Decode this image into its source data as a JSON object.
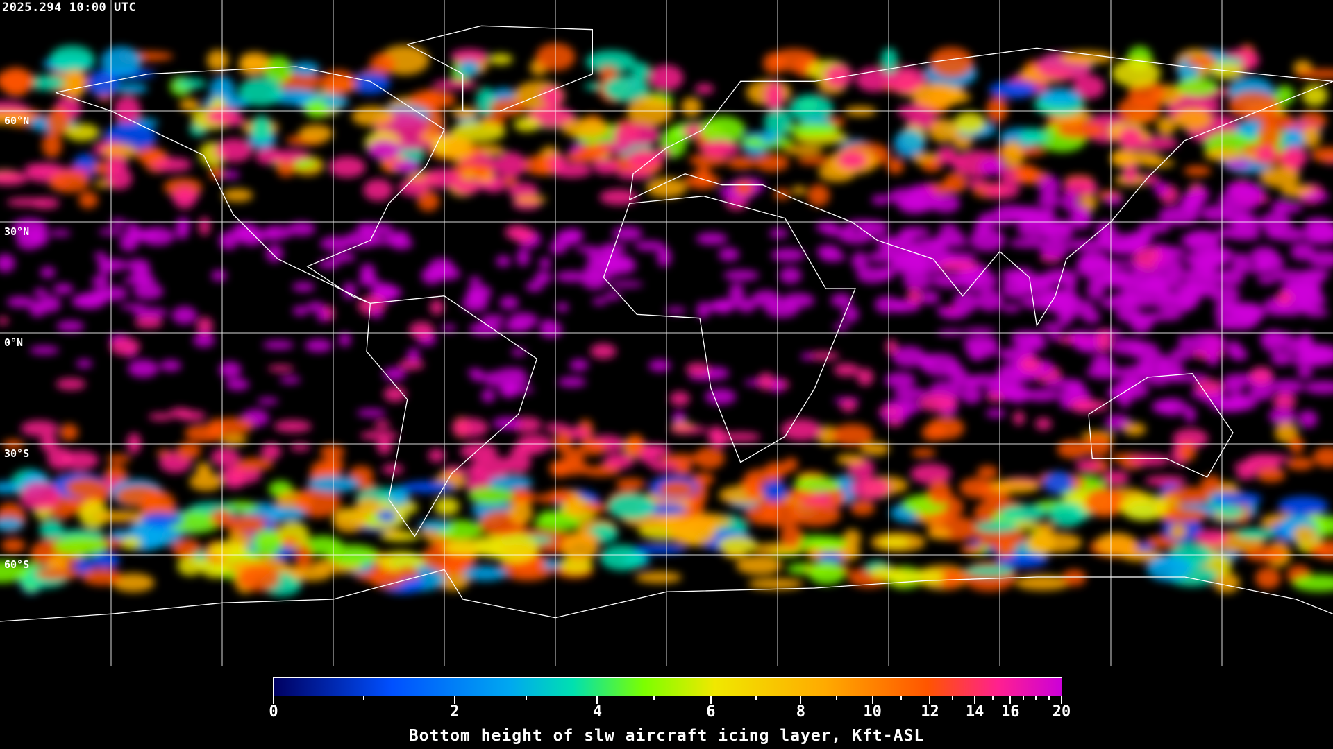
{
  "header": {
    "timestamp": "2025.294 10:00 UTC"
  },
  "map": {
    "projection": "equirectangular",
    "lat_labels": [
      "60°N",
      "30°N",
      "0°N",
      "30°S",
      "60°S"
    ],
    "gridline_color": "#ffffff",
    "coastline_color": "#ffffff",
    "background": "#000000"
  },
  "colorbar": {
    "label": "Bottom height of slw aircraft icing layer, Kft-ASL",
    "tick_labels": [
      "0",
      "2",
      "4",
      "6",
      "8",
      "10",
      "12",
      "14",
      "16",
      "20"
    ],
    "tick_values": [
      0,
      2,
      4,
      6,
      8,
      10,
      12,
      14,
      16,
      20
    ],
    "minor_tick_values": [
      1,
      3,
      5,
      7,
      9,
      11,
      13,
      15,
      17,
      18,
      19
    ],
    "range": [
      0,
      20
    ],
    "colors": [
      "#000060",
      "#0050ff",
      "#00a8f0",
      "#00e0b0",
      "#7cff00",
      "#f0e800",
      "#ffaa00",
      "#ff5500",
      "#ff2090",
      "#cc00d8"
    ]
  }
}
